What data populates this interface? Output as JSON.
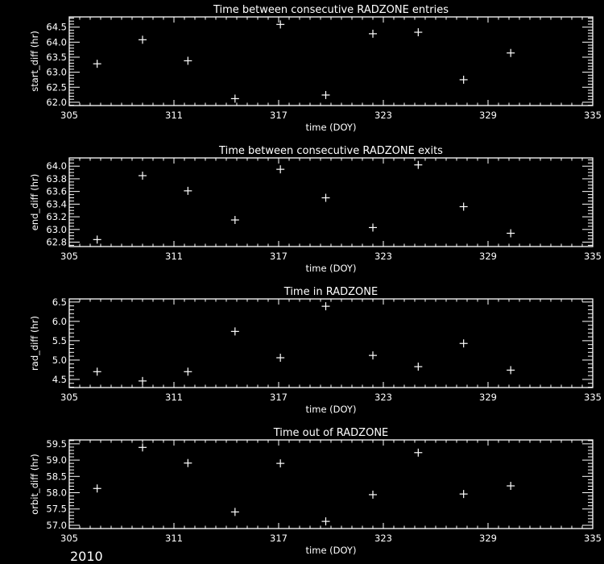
{
  "colors": {
    "background": "#000000",
    "foreground": "#ffffff"
  },
  "year_label": "2010",
  "chart_data": [
    {
      "type": "scatter",
      "marker": "plus",
      "title": "Time between consecutive RADZONE entries",
      "xlabel": "time (DOY)",
      "ylabel": "start_diff (hr)",
      "xlim": [
        305,
        335
      ],
      "xticks": [
        305,
        311,
        317,
        323,
        329,
        335
      ],
      "ylim": [
        61.89,
        64.84
      ],
      "yticks": [
        "62.0",
        "62.5",
        "63.0",
        "63.5",
        "64.0",
        "64.5"
      ],
      "yminor": 5,
      "x": [
        306.6,
        309.2,
        311.8,
        314.5,
        317.1,
        319.7,
        322.4,
        325.0,
        327.6,
        330.3
      ],
      "y": [
        63.28,
        64.08,
        63.38,
        62.12,
        64.59,
        62.24,
        64.28,
        64.33,
        62.75,
        63.64
      ]
    },
    {
      "type": "scatter",
      "marker": "plus",
      "title": "Time between consecutive RADZONE exits",
      "xlabel": "time (DOY)",
      "ylabel": "end_diff (hr)",
      "xlim": [
        305,
        335
      ],
      "xticks": [
        305,
        311,
        317,
        323,
        329,
        335
      ],
      "ylim": [
        62.73,
        64.13
      ],
      "yticks": [
        "62.8",
        "63.0",
        "63.2",
        "63.4",
        "63.6",
        "63.8",
        "64.0"
      ],
      "yminor": 4,
      "x": [
        306.6,
        309.2,
        311.8,
        314.5,
        317.1,
        319.7,
        322.4,
        325.0,
        327.6,
        330.3
      ],
      "y": [
        62.84,
        63.85,
        63.61,
        63.15,
        63.95,
        63.5,
        63.03,
        64.02,
        63.36,
        62.94
      ]
    },
    {
      "type": "scatter",
      "marker": "plus",
      "title": "Time in RADZONE",
      "xlabel": "time (DOY)",
      "ylabel": "rad_diff (hr)",
      "xlim": [
        305,
        335
      ],
      "xticks": [
        305,
        311,
        317,
        323,
        329,
        335
      ],
      "ylim": [
        4.29,
        6.58
      ],
      "yticks": [
        "4.5",
        "5.0",
        "5.5",
        "6.0",
        "6.5"
      ],
      "yminor": 5,
      "x": [
        306.6,
        309.2,
        311.8,
        314.5,
        317.1,
        319.7,
        322.4,
        325.0,
        327.6,
        330.3
      ],
      "y": [
        4.7,
        4.46,
        4.7,
        5.74,
        5.06,
        6.39,
        5.12,
        4.83,
        5.43,
        4.74
      ]
    },
    {
      "type": "scatter",
      "marker": "plus",
      "title": "Time out of RADZONE",
      "xlabel": "time (DOY)",
      "ylabel": "orbit_diff (hr)",
      "xlim": [
        305,
        335
      ],
      "xticks": [
        305,
        311,
        317,
        323,
        329,
        335
      ],
      "ylim": [
        56.9,
        59.62
      ],
      "yticks": [
        "57.0",
        "57.5",
        "58.0",
        "58.5",
        "59.0",
        "59.5"
      ],
      "yminor": 5,
      "x": [
        306.6,
        309.2,
        311.8,
        314.5,
        317.1,
        319.7,
        322.4,
        325.0,
        327.6,
        330.3
      ],
      "y": [
        58.13,
        59.39,
        58.91,
        57.41,
        58.9,
        57.12,
        57.94,
        59.23,
        57.96,
        58.21
      ]
    }
  ]
}
